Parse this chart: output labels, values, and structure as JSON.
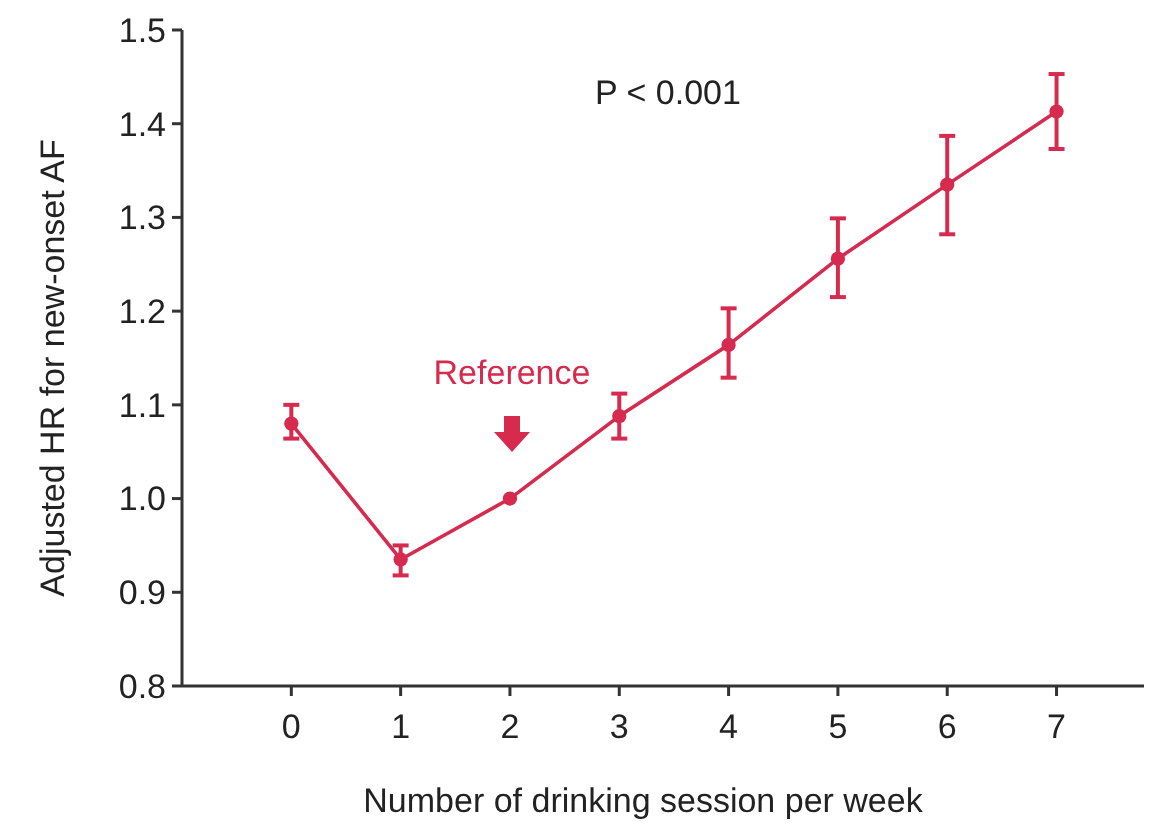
{
  "chart_data": {
    "type": "line",
    "xlabel": "Number of drinking session per week",
    "ylabel": "Adjusted HR for new-onset AF",
    "x": [
      0,
      1,
      2,
      3,
      4,
      5,
      6,
      7
    ],
    "series": [
      {
        "color": "#d62a4e",
        "values": [
          1.08,
          0.935,
          1.0,
          1.088,
          1.164,
          1.256,
          1.335,
          1.413
        ],
        "errors": [
          [
            1.064,
            1.1
          ],
          [
            0.918,
            0.95
          ],
          null,
          [
            1.064,
            1.112
          ],
          [
            1.129,
            1.203
          ],
          [
            1.215,
            1.299
          ],
          [
            1.282,
            1.387
          ],
          [
            1.373,
            1.453
          ]
        ]
      }
    ],
    "xlim": [
      -1,
      7.8
    ],
    "xticks": [
      0,
      1,
      2,
      3,
      4,
      5,
      6,
      7
    ],
    "ylim": [
      0.8,
      1.5
    ],
    "yticks": [
      {
        "value": 0.8,
        "label": "0.8"
      },
      {
        "value": 0.9,
        "label": "0.9"
      },
      {
        "value": 1,
        "label": "1.0"
      },
      {
        "value": 1.1,
        "label": "1.1"
      },
      {
        "value": 1.2,
        "label": "1.2"
      },
      {
        "value": 1.3,
        "label": "1.3"
      },
      {
        "value": 1.4,
        "label": "1.4"
      },
      {
        "value": 1.5,
        "label": "1.5"
      }
    ],
    "marker": "circle",
    "line_style": "solid",
    "grid": false,
    "annotations": [
      "P < 0.001",
      "Reference"
    ]
  }
}
